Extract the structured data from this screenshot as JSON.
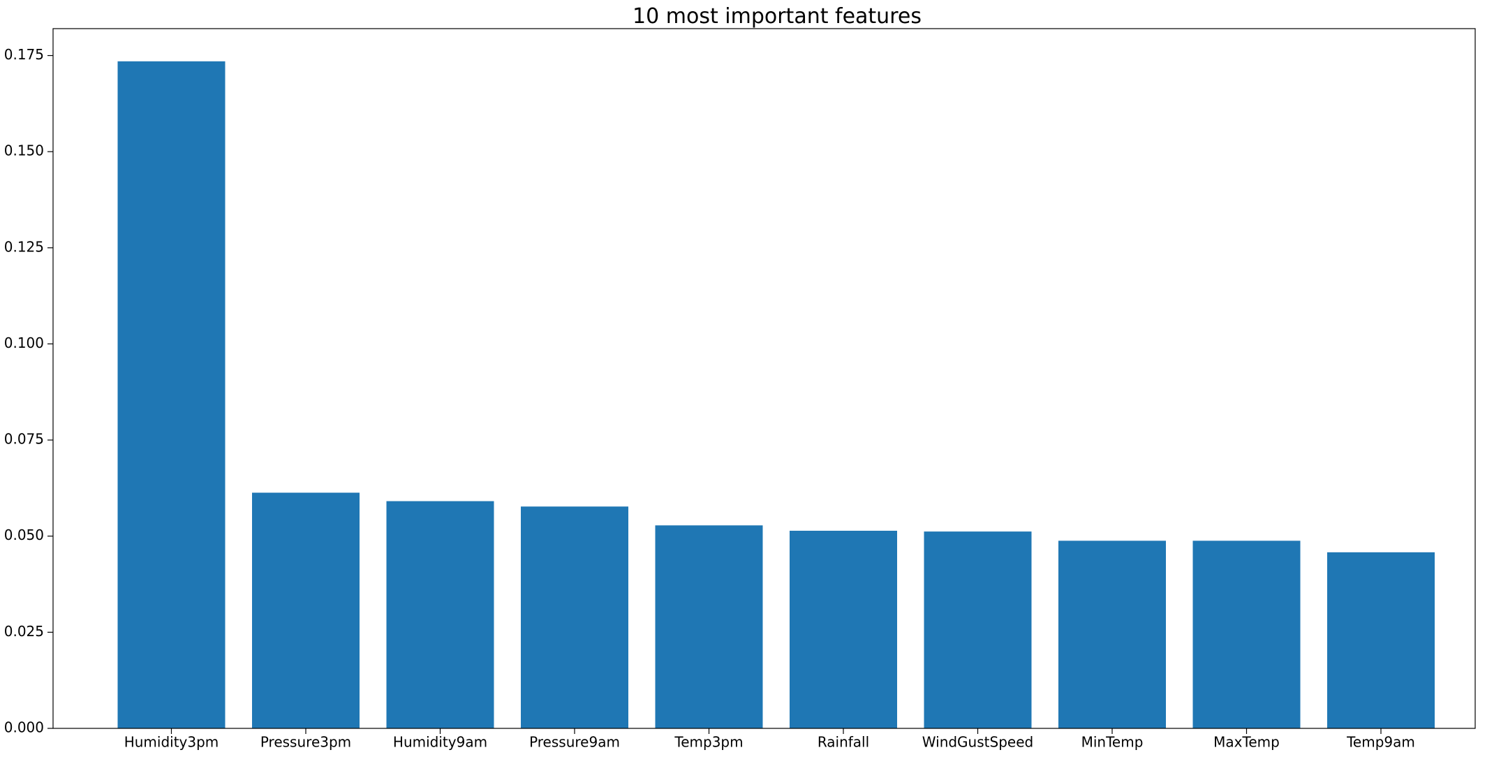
{
  "chart_data": {
    "type": "bar",
    "title": "10 most important features",
    "xlabel": "",
    "ylabel": "",
    "categories": [
      "Humidity3pm",
      "Pressure3pm",
      "Humidity9am",
      "Pressure9am",
      "Temp3pm",
      "Rainfall",
      "WindGustSpeed",
      "MinTemp",
      "MaxTemp",
      "Temp9am"
    ],
    "values": [
      0.1735,
      0.0613,
      0.0591,
      0.0577,
      0.0528,
      0.0514,
      0.0512,
      0.0488,
      0.0488,
      0.0458
    ],
    "ylim": [
      0,
      0.182
    ],
    "yticks": [
      "0.000",
      "0.025",
      "0.050",
      "0.075",
      "0.100",
      "0.125",
      "0.150",
      "0.175"
    ],
    "bar_color": "#1f77b4",
    "grid": false,
    "legend": "none"
  }
}
